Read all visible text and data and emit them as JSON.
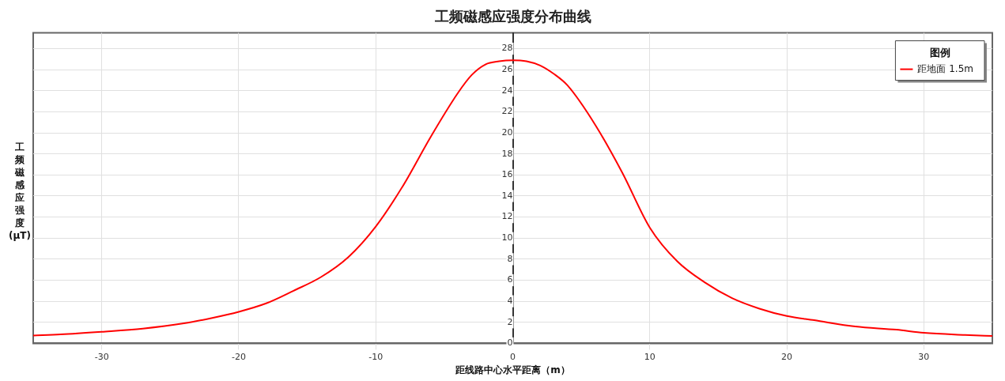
{
  "chart_data": {
    "type": "line",
    "title": "工频磁感应强度分布曲线",
    "xlabel": "距线路中心水平距离（m）",
    "ylabel": "工频磁感应强度(μT)",
    "legend_title": "图例",
    "legend": "top right",
    "grid": true,
    "marker": "none",
    "line_style": "solid",
    "xlim": [
      -35,
      35
    ],
    "xticks": [
      -30,
      -20,
      -10,
      0,
      10,
      20,
      30
    ],
    "ylim": [
      0,
      29.5
    ],
    "yticks": [
      0,
      2,
      4,
      6,
      8,
      10,
      12,
      14,
      16,
      18,
      20,
      22,
      24,
      26,
      28
    ],
    "series": [
      {
        "name": "距地面 1.5m",
        "color": "#ff0000",
        "x": [
          -35,
          -33,
          -30,
          -27,
          -24,
          -22,
          -20,
          -18,
          -16,
          -14,
          -12,
          -10,
          -8,
          -6,
          -4,
          -3,
          -2,
          -1,
          0,
          1,
          2,
          3,
          4,
          6,
          8,
          10,
          12,
          14,
          16,
          18,
          20,
          22,
          25,
          28,
          30,
          33,
          35
        ],
        "values": [
          0.75,
          0.85,
          1.1,
          1.4,
          1.9,
          2.4,
          3.0,
          3.8,
          5.0,
          6.3,
          8.2,
          11.1,
          15.0,
          19.6,
          23.8,
          25.5,
          26.5,
          26.8,
          26.9,
          26.8,
          26.4,
          25.6,
          24.5,
          20.8,
          16.2,
          11.0,
          7.8,
          5.8,
          4.3,
          3.3,
          2.6,
          2.2,
          1.6,
          1.3,
          1.0,
          0.8,
          0.7
        ]
      }
    ]
  }
}
